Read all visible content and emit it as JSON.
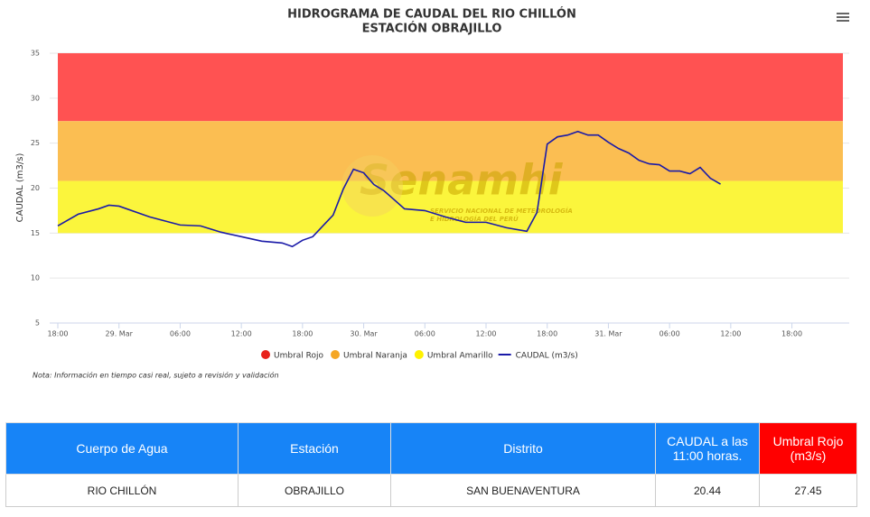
{
  "chart_data": {
    "type": "line",
    "title": "HIDROGRAMA DE CAUDAL DEL RIO CHILLÓN",
    "subtitle": "ESTACIÓN OBRAJILLO",
    "y_label": "CAUDAL (m3/s)",
    "watermark": "Senamhi",
    "watermark_sub": [
      "SERVICIO NACIONAL DE METEOROLOGÍA",
      "E HIDROLOGÍA DEL PERÚ"
    ],
    "note": "Nota: Información en tiempo casi real, sujeto a revisión y validación",
    "xlim": [
      0,
      77
    ],
    "xticks": [
      {
        "value": 0,
        "label": "18:00"
      },
      {
        "value": 6,
        "label": "29. Mar"
      },
      {
        "value": 12,
        "label": "06:00"
      },
      {
        "value": 18,
        "label": "12:00"
      },
      {
        "value": 24,
        "label": "18:00"
      },
      {
        "value": 30,
        "label": "30. Mar"
      },
      {
        "value": 36,
        "label": "06:00"
      },
      {
        "value": 42,
        "label": "12:00"
      },
      {
        "value": 48,
        "label": "18:00"
      },
      {
        "value": 54,
        "label": "31. Mar"
      },
      {
        "value": 60,
        "label": "06:00"
      },
      {
        "value": 66,
        "label": "12:00"
      },
      {
        "value": 72,
        "label": "18:00"
      }
    ],
    "ylim": [
      5,
      35
    ],
    "yticks": [
      5,
      10,
      15,
      20,
      25,
      30,
      35
    ],
    "grid": true,
    "bands": [
      {
        "name": "Umbral Rojo",
        "color": "#ff5252",
        "from": 27.45,
        "to": 35
      },
      {
        "name": "Umbral Naranja",
        "color": "#fbbe52",
        "from": 20.8,
        "to": 27.45
      },
      {
        "name": "Umbral Amarillo",
        "color": "#fbf53c",
        "from": 15,
        "to": 20.8
      }
    ],
    "legend_colors": [
      "#e8221b",
      "#f5a623",
      "#fff200"
    ],
    "series": [
      {
        "name": "CAUDAL (m3/s)",
        "color": "#1a1aa8",
        "x": [
          0,
          2,
          4,
          5,
          6,
          9,
          12,
          14,
          16,
          18,
          20,
          22,
          23,
          24,
          25,
          26,
          27,
          28,
          29,
          30,
          31,
          32,
          33,
          34,
          36,
          38,
          40,
          42,
          44,
          46,
          47,
          48,
          49,
          50,
          51,
          52,
          53,
          54,
          55,
          56,
          57,
          58,
          59,
          60,
          61,
          62,
          63,
          64,
          65
        ],
        "values": [
          15.8,
          17.1,
          17.7,
          18.1,
          18.0,
          16.8,
          15.9,
          15.8,
          15.1,
          14.6,
          14.1,
          13.9,
          13.5,
          14.2,
          14.6,
          15.8,
          17.0,
          19.9,
          22.1,
          21.7,
          20.4,
          19.7,
          18.7,
          17.7,
          17.5,
          16.8,
          16.2,
          16.2,
          15.6,
          15.2,
          17.3,
          24.9,
          25.7,
          25.9,
          26.3,
          25.9,
          25.9,
          25.1,
          24.4,
          23.9,
          23.1,
          22.7,
          22.6,
          21.9,
          21.9,
          21.6,
          22.3,
          21.1,
          20.44
        ]
      }
    ]
  },
  "table": {
    "header": [
      "Cuerpo de Agua",
      "Estación",
      "Distrito",
      "CAUDAL a las 11:00 horas.",
      "Umbral Rojo (m3/s)"
    ],
    "rows": [
      [
        "RIO CHILLÓN",
        "OBRAJILLO",
        "SAN BUENAVENTURA",
        "20.44",
        "27.45"
      ]
    ]
  }
}
